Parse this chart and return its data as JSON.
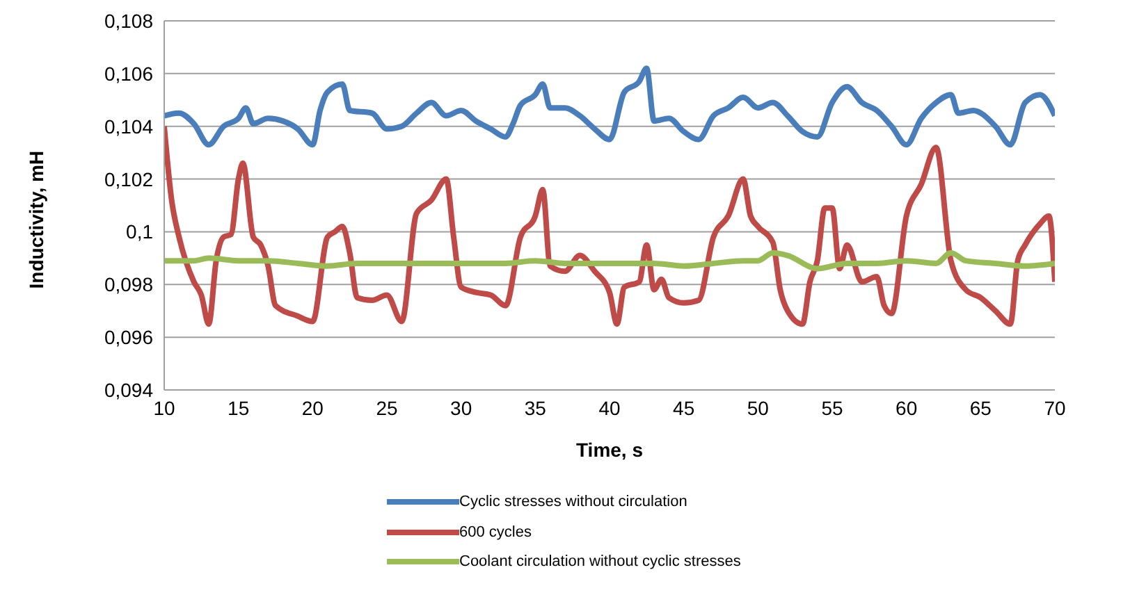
{
  "chart_data": {
    "type": "line",
    "xlabel": "Time, s",
    "ylabel": "Inductivity, mH",
    "xlim": [
      10,
      70
    ],
    "xticks": [
      10,
      15,
      20,
      25,
      30,
      35,
      40,
      45,
      50,
      55,
      60,
      65,
      70
    ],
    "ylim": [
      0.094,
      0.108
    ],
    "yticks": [
      {
        "value": 0.094,
        "label": "0,094"
      },
      {
        "value": 0.096,
        "label": "0,096"
      },
      {
        "value": 0.098,
        "label": "0,098"
      },
      {
        "value": 0.1,
        "label": "0,1"
      },
      {
        "value": 0.102,
        "label": "0,102"
      },
      {
        "value": 0.104,
        "label": "0,104"
      },
      {
        "value": 0.106,
        "label": "0,106"
      },
      {
        "value": 0.108,
        "label": "0,108"
      }
    ],
    "grid": "y",
    "legend": "bottom",
    "marker": "none",
    "line_style": "solid",
    "series": [
      {
        "name": "Cyclic stresses without circulation",
        "color": "#4a7ebb",
        "x": [
          10,
          11,
          12,
          13,
          14,
          15,
          15.5,
          16,
          17,
          18,
          19,
          20,
          20.5,
          21,
          22,
          22.5,
          24,
          25,
          26,
          27,
          28,
          29,
          30,
          31,
          32,
          33,
          33.5,
          34,
          35,
          35.5,
          36,
          37,
          38,
          39,
          40,
          41,
          42,
          42.5,
          43,
          44,
          45,
          46,
          47,
          48,
          49,
          50,
          51,
          52,
          53,
          54,
          55,
          56,
          57,
          58,
          59,
          60,
          61,
          62,
          63,
          63.5,
          64.5,
          66,
          67,
          68,
          69,
          70
        ],
        "values": [
          0.1044,
          0.1045,
          0.1041,
          0.1033,
          0.104,
          0.1043,
          0.1047,
          0.1041,
          0.1043,
          0.1042,
          0.1039,
          0.1033,
          0.1046,
          0.1053,
          0.1056,
          0.1046,
          0.1045,
          0.1039,
          0.104,
          0.1045,
          0.1049,
          0.1044,
          0.1046,
          0.1042,
          0.1039,
          0.1036,
          0.1041,
          0.1048,
          0.1052,
          0.1056,
          0.1047,
          0.1047,
          0.1044,
          0.1039,
          0.1035,
          0.1053,
          0.1057,
          0.1062,
          0.1042,
          0.1043,
          0.1038,
          0.1035,
          0.1044,
          0.1047,
          0.1051,
          0.1047,
          0.1049,
          0.1044,
          0.1038,
          0.1036,
          0.1049,
          0.1055,
          0.1049,
          0.1046,
          0.104,
          0.1033,
          0.1043,
          0.1049,
          0.1052,
          0.1045,
          0.1046,
          0.104,
          0.1033,
          0.1049,
          0.1052,
          0.1044
        ]
      },
      {
        "name": "600 cycles",
        "color": "#be4b48",
        "x": [
          10,
          10.5,
          11,
          12,
          12.5,
          13,
          13.5,
          14,
          14.5,
          15,
          15.3,
          16,
          16.5,
          17,
          17.5,
          19,
          20,
          21,
          21.5,
          22,
          22.5,
          23,
          24,
          25,
          26,
          27,
          28,
          29,
          29.5,
          30,
          31,
          32,
          33,
          34,
          35,
          35.5,
          36,
          37,
          38,
          39,
          40,
          40.5,
          41,
          42,
          42.5,
          43,
          43.5,
          44,
          45,
          46,
          47,
          48,
          49,
          49.5,
          50,
          51,
          51.5,
          52,
          53,
          53.5,
          54,
          54.5,
          55,
          55.5,
          56,
          57,
          58,
          58.5,
          59,
          60,
          61,
          62,
          63,
          64,
          65,
          66,
          67,
          67.5,
          68,
          69,
          69.6,
          70
        ],
        "values": [
          0.104,
          0.1012,
          0.0998,
          0.0981,
          0.0976,
          0.0965,
          0.0989,
          0.0998,
          0.0999,
          0.102,
          0.1026,
          0.0998,
          0.0995,
          0.0987,
          0.0972,
          0.0968,
          0.0966,
          0.0998,
          0.1,
          0.1002,
          0.0992,
          0.0975,
          0.0974,
          0.0976,
          0.0966,
          0.1007,
          0.1012,
          0.102,
          0.0998,
          0.0979,
          0.0977,
          0.0976,
          0.0972,
          0.0998,
          0.1006,
          0.1016,
          0.0987,
          0.0985,
          0.0991,
          0.0985,
          0.0977,
          0.0965,
          0.0979,
          0.0981,
          0.0995,
          0.0978,
          0.0982,
          0.0975,
          0.0973,
          0.0974,
          0.0998,
          0.1006,
          0.102,
          0.1006,
          0.1002,
          0.0996,
          0.0978,
          0.097,
          0.0965,
          0.0981,
          0.0989,
          0.1009,
          0.1009,
          0.0986,
          0.0995,
          0.0981,
          0.0983,
          0.0972,
          0.0969,
          0.1006,
          0.1018,
          0.1032,
          0.0989,
          0.0978,
          0.0975,
          0.097,
          0.0965,
          0.0989,
          0.0995,
          0.1003,
          0.1006,
          0.0981
        ]
      },
      {
        "name": "Coolant circulation without cyclic stresses",
        "color": "#9bbb59",
        "x": [
          10,
          12,
          13,
          15,
          17,
          19,
          21,
          23,
          25,
          27,
          29,
          31,
          33,
          35,
          37,
          39,
          41,
          43,
          45,
          47,
          49,
          50,
          51,
          52,
          54,
          56,
          58,
          60,
          62,
          63,
          64,
          66,
          68,
          70
        ],
        "values": [
          0.0989,
          0.0989,
          0.099,
          0.0989,
          0.0989,
          0.0988,
          0.0987,
          0.0988,
          0.0988,
          0.0988,
          0.0988,
          0.0988,
          0.0988,
          0.0989,
          0.0988,
          0.0988,
          0.0988,
          0.0988,
          0.0987,
          0.0988,
          0.0989,
          0.0989,
          0.0992,
          0.0991,
          0.0986,
          0.0988,
          0.0988,
          0.0989,
          0.0988,
          0.0992,
          0.0989,
          0.0988,
          0.0987,
          0.0988
        ]
      }
    ]
  }
}
